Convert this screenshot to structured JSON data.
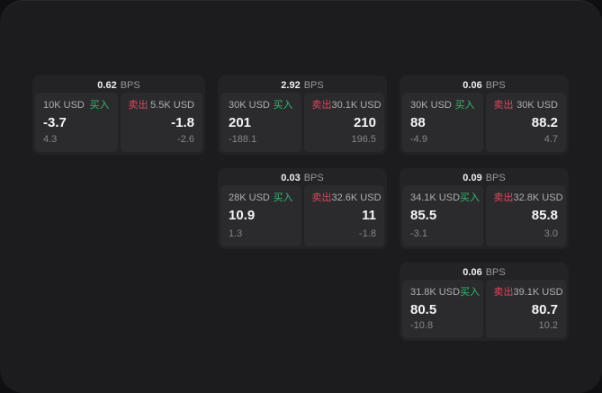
{
  "labels": {
    "bps_unit": "BPS",
    "buy": "买入",
    "sell": "卖出"
  },
  "colors": {
    "buy_green": "#35b873",
    "sell_red": "#d8475f",
    "window_bg": "#1c1c1e",
    "card_bg": "#232325",
    "pane_bg": "#2b2b2d"
  },
  "cards": [
    {
      "bps": "0.62",
      "buy": {
        "notional": "10K USD",
        "value": "-3.7",
        "delta": "4.3"
      },
      "sell": {
        "notional": "5.5K USD",
        "value": "-1.8",
        "delta": "-2.6"
      }
    },
    {
      "bps": "2.92",
      "buy": {
        "notional": "30K USD",
        "value": "201",
        "delta": "-188.1"
      },
      "sell": {
        "notional": "30.1K USD",
        "value": "210",
        "delta": "196.5"
      }
    },
    {
      "bps": "0.06",
      "buy": {
        "notional": "30K USD",
        "value": "88",
        "delta": "-4.9"
      },
      "sell": {
        "notional": "30K USD",
        "value": "88.2",
        "delta": "4.7"
      }
    },
    {
      "bps": "0.03",
      "buy": {
        "notional": "28K USD",
        "value": "10.9",
        "delta": "1.3"
      },
      "sell": {
        "notional": "32.6K USD",
        "value": "11",
        "delta": "-1.8"
      }
    },
    {
      "bps": "0.09",
      "buy": {
        "notional": "34.1K USD",
        "value": "85.5",
        "delta": "-3.1"
      },
      "sell": {
        "notional": "32.8K USD",
        "value": "85.8",
        "delta": "3.0"
      }
    },
    {
      "bps": "0.06",
      "buy": {
        "notional": "31.8K USD",
        "value": "80.5",
        "delta": "-10.8"
      },
      "sell": {
        "notional": "39.1K USD",
        "value": "80.7",
        "delta": "10.2"
      }
    }
  ]
}
